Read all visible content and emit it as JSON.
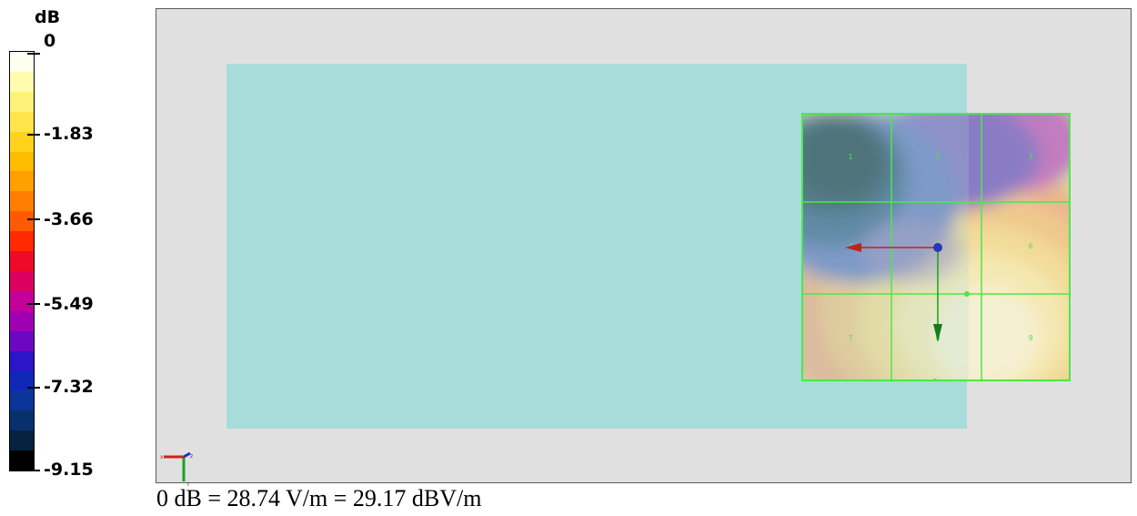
{
  "legend": {
    "unit": "dB",
    "labels": [
      "0",
      "-1.83",
      "-3.66",
      "-5.49",
      "-7.32",
      "-9.15"
    ],
    "colors": [
      "#fffff0",
      "#fffcb0",
      "#fff27a",
      "#ffe44a",
      "#ffd21c",
      "#ffbc00",
      "#ffa000",
      "#ff7e00",
      "#ff5a00",
      "#ff2a00",
      "#ee0a28",
      "#dc0060",
      "#c4009a",
      "#a000b4",
      "#6c08c4",
      "#2c14c8",
      "#1028b8",
      "#0c3498",
      "#08306c",
      "#06223e",
      "#000000"
    ]
  },
  "field_map": {
    "cell_labels": [
      "1",
      "2",
      "3",
      "4",
      "5",
      "6",
      "7",
      "8",
      "9"
    ],
    "grid_color": "#4ae84a",
    "phantom_color": "#a7dcdb",
    "background_color": "#e0e0e0"
  },
  "axes_triad": {
    "x_label": "x",
    "y_label": "y",
    "z_label": "z"
  },
  "caption": "0 dB = 28.74 V/m = 29.17 dBV/m"
}
